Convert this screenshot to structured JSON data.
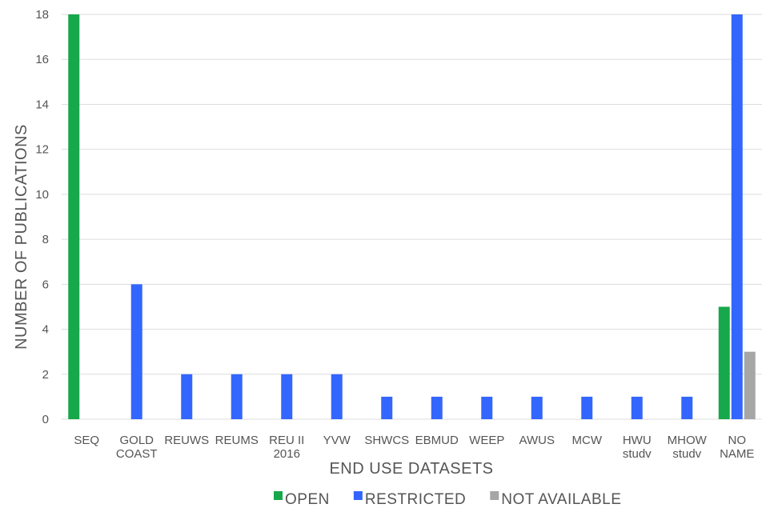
{
  "chart_data": {
    "type": "bar",
    "title": "",
    "xlabel": "END USE DATASETS",
    "ylabel": "NUMBER OF PUBLICATIONS",
    "ylim": [
      0,
      18
    ],
    "yticks": [
      0,
      2,
      4,
      6,
      8,
      10,
      12,
      14,
      16,
      18
    ],
    "grid": true,
    "legend_position": "bottom",
    "categories": [
      [
        "SEQ"
      ],
      [
        "GOLD",
        "COAST"
      ],
      [
        "REUWS"
      ],
      [
        "REUMS"
      ],
      [
        "REU II",
        "2016"
      ],
      [
        "YVW"
      ],
      [
        "SHWCS"
      ],
      [
        "EBMUD"
      ],
      [
        "WEEP"
      ],
      [
        "AWUS"
      ],
      [
        "MCW"
      ],
      [
        "HWU",
        "studv"
      ],
      [
        "MHOW",
        "studv"
      ],
      [
        "NO",
        "NAME"
      ]
    ],
    "series": [
      {
        "name": "OPEN",
        "color": "#16a84a",
        "values": [
          18,
          0,
          0,
          0,
          0,
          0,
          0,
          0,
          0,
          0,
          0,
          0,
          0,
          5
        ]
      },
      {
        "name": "RESTRICTED",
        "color": "#3366ff",
        "values": [
          0,
          6,
          2,
          2,
          2,
          2,
          1,
          1,
          1,
          1,
          1,
          1,
          1,
          18
        ]
      },
      {
        "name": "NOT AVAILABLE",
        "color": "#a6a6a6",
        "values": [
          0,
          0,
          0,
          0,
          0,
          0,
          0,
          0,
          0,
          0,
          0,
          0,
          0,
          3
        ]
      }
    ]
  }
}
